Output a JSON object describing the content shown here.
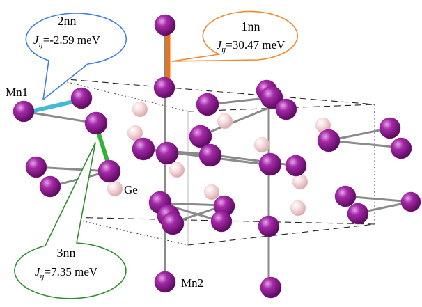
{
  "colors": {
    "mn_atom": "#8b1a8f",
    "ge_atom": "#f2cfd2",
    "bond": "#8a8a8a",
    "bond_1nn": "#e8741c",
    "bond_2nn": "#45b8d8",
    "bond_3nn": "#34b235",
    "callout_1nn": "#ee8a2e",
    "callout_2nn": "#3d7fe0",
    "callout_3nn": "#2f8f2f"
  },
  "callouts": {
    "nn1": {
      "title": "1nn",
      "j_symbol": "J",
      "j_sub": "ij",
      "j_value": "=30.47 meV"
    },
    "nn2": {
      "title": "2nn",
      "j_symbol": "J",
      "j_sub": "ij",
      "j_value": "=-2.59 meV"
    },
    "nn3": {
      "title": "3nn",
      "j_symbol": "J",
      "j_sub": "ij",
      "j_value": "=7.35 meV"
    }
  },
  "labels": {
    "mn1": "Mn1",
    "mn2": "Mn2",
    "ge": "Ge"
  }
}
